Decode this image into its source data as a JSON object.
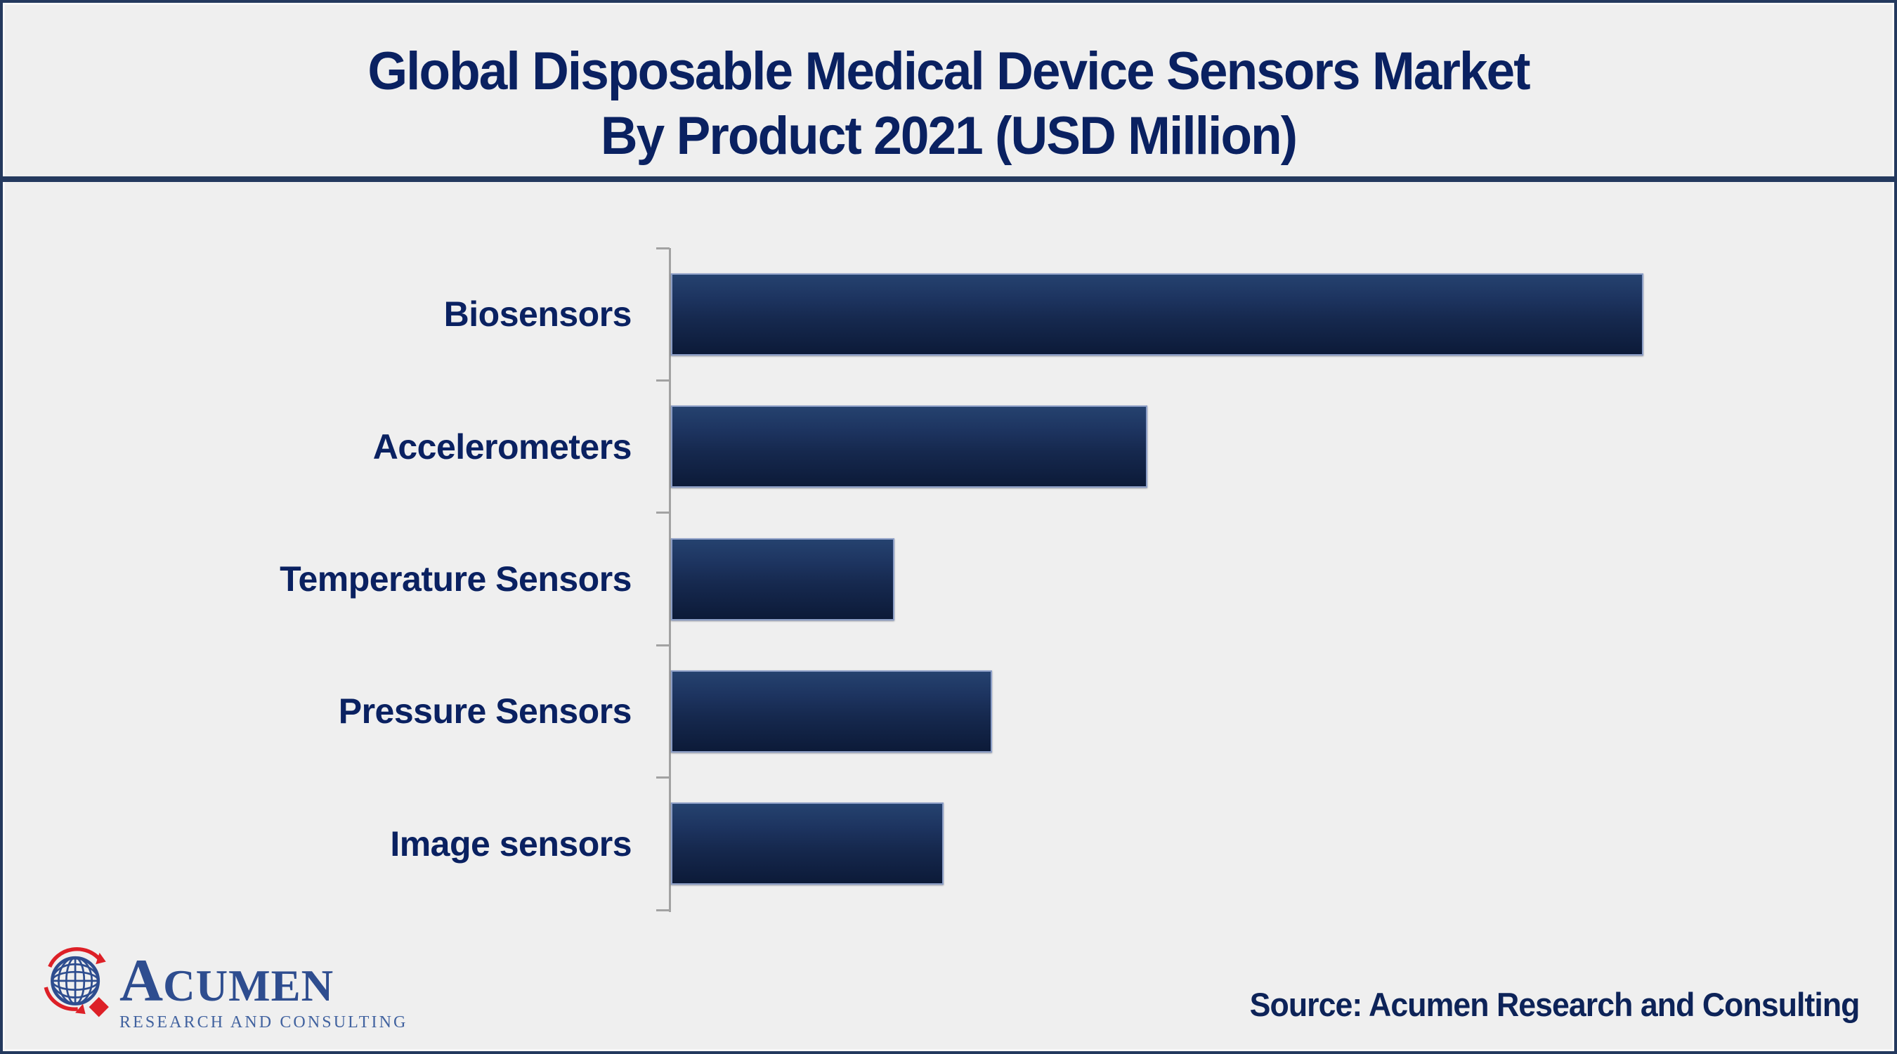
{
  "title": {
    "line1": "Global Disposable Medical Device Sensors Market",
    "line2": "By Product 2021 (USD Million)"
  },
  "chart_data": {
    "type": "bar",
    "orientation": "horizontal",
    "title": "Global Disposable Medical Device Sensors Market By Product 2021 (USD Million)",
    "categories": [
      "Biosensors",
      "Accelerometers",
      "Temperature Sensors",
      "Pressure Sensors",
      "Image sensors"
    ],
    "values": [
      100,
      49,
      23,
      33,
      28
    ],
    "value_unit": "relative bar length, % of longest bar (numeric value axis not labeled in image)",
    "xlabel": "",
    "ylabel": "",
    "legend": false,
    "grid": false,
    "axis_ticks": 6,
    "colors": {
      "bar_gradient_top": "#25426f",
      "bar_gradient_bottom": "#0c1a38",
      "bar_border": "#8d9fc7",
      "axis": "#a2a2a2",
      "label_text": "#0a2161",
      "title_text": "#0a2161",
      "frame": "#24395e",
      "background": "#efefef"
    }
  },
  "footer": {
    "logo": {
      "initial": "A",
      "rest": "CUMEN",
      "subtitle": "RESEARCH AND CONSULTING",
      "globe_blue": "#2e4d8f",
      "accent_red": "#dd2027"
    },
    "source": "Source: Acumen Research and Consulting"
  }
}
